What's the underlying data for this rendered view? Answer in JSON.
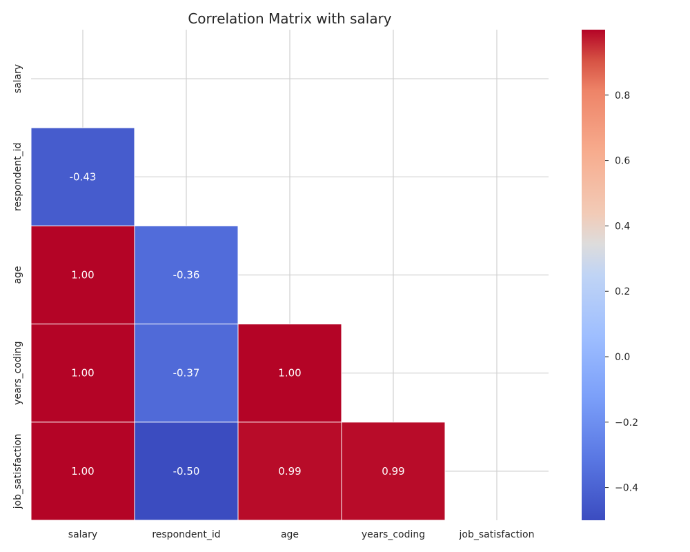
{
  "chart_data": {
    "type": "heatmap",
    "title": "Correlation Matrix with salary",
    "variables": [
      "salary",
      "respondent_id",
      "age",
      "years_coding",
      "job_satisfaction"
    ],
    "mask": "upper-triangle-including-diagonal",
    "cells": [
      {
        "row": "respondent_id",
        "col": "salary",
        "value": -0.43,
        "label": "-0.43"
      },
      {
        "row": "age",
        "col": "salary",
        "value": 1.0,
        "label": "1.00"
      },
      {
        "row": "age",
        "col": "respondent_id",
        "value": -0.36,
        "label": "-0.36"
      },
      {
        "row": "years_coding",
        "col": "salary",
        "value": 1.0,
        "label": "1.00"
      },
      {
        "row": "years_coding",
        "col": "respondent_id",
        "value": -0.37,
        "label": "-0.37"
      },
      {
        "row": "years_coding",
        "col": "age",
        "value": 1.0,
        "label": "1.00"
      },
      {
        "row": "job_satisfaction",
        "col": "salary",
        "value": 1.0,
        "label": "1.00"
      },
      {
        "row": "job_satisfaction",
        "col": "respondent_id",
        "value": -0.5,
        "label": "-0.50"
      },
      {
        "row": "job_satisfaction",
        "col": "age",
        "value": 0.99,
        "label": "0.99"
      },
      {
        "row": "job_satisfaction",
        "col": "years_coding",
        "value": 0.99,
        "label": "0.99"
      }
    ],
    "colorbar": {
      "colormap": "coolwarm",
      "vmin": -0.5,
      "vmax": 1.0,
      "ticks": [
        -0.4,
        -0.2,
        0.0,
        0.2,
        0.4,
        0.6,
        0.8
      ],
      "tick_labels": [
        "−0.4",
        "−0.2",
        "0.0",
        "0.2",
        "0.4",
        "0.6",
        "0.8"
      ]
    },
    "grid": true
  }
}
